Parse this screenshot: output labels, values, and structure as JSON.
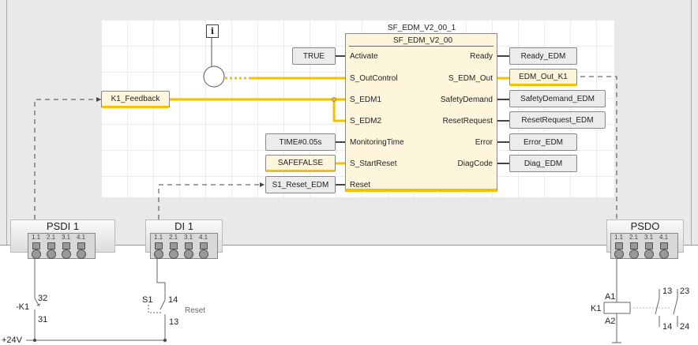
{
  "fb": {
    "instance": "SF_EDM_V2_00_1",
    "type": "SF_EDM_V2_00",
    "inputs": [
      "Activate",
      "S_OutControl",
      "S_EDM1",
      "S_EDM2",
      "MonitoringTime",
      "S_StartReset",
      "Reset"
    ],
    "outputs": [
      "Ready",
      "S_EDM_Out",
      "SafetyDemand",
      "ResetRequest",
      "Error",
      "DiagCode"
    ]
  },
  "in_vars": {
    "activate": "TRUE",
    "k1_feedback": "K1_Feedback",
    "monitoring_time": "TIME#0.05s",
    "start_reset": "SAFEFALSE",
    "reset": "S1_Reset_EDM"
  },
  "out_vars": [
    "Ready_EDM",
    "EDM_Out_K1",
    "SafetyDemand_EDM",
    "ResetRequest_EDM",
    "Error_EDM",
    "Diag_EDM"
  ],
  "info_icon": "i",
  "modules": [
    {
      "name": "PSDI 1"
    },
    {
      "name": "DI 1"
    },
    {
      "name": "PSDO"
    }
  ],
  "terminals": [
    "1.1",
    "2.1",
    "3.1",
    "4.1"
  ],
  "circuit": {
    "k1_contact": "-K1",
    "k1_32": "32",
    "k1_31": "31",
    "s1": "S1",
    "s1_14": "14",
    "s1_13": "13",
    "reset": "Reset",
    "supply": "+24V",
    "coil": "K1",
    "a1": "A1",
    "a2": "A2",
    "c13": "13",
    "c23": "23",
    "c14": "14",
    "c24": "24"
  },
  "colors": {
    "signal": "#f2c200",
    "block": "#fdf6dc"
  }
}
